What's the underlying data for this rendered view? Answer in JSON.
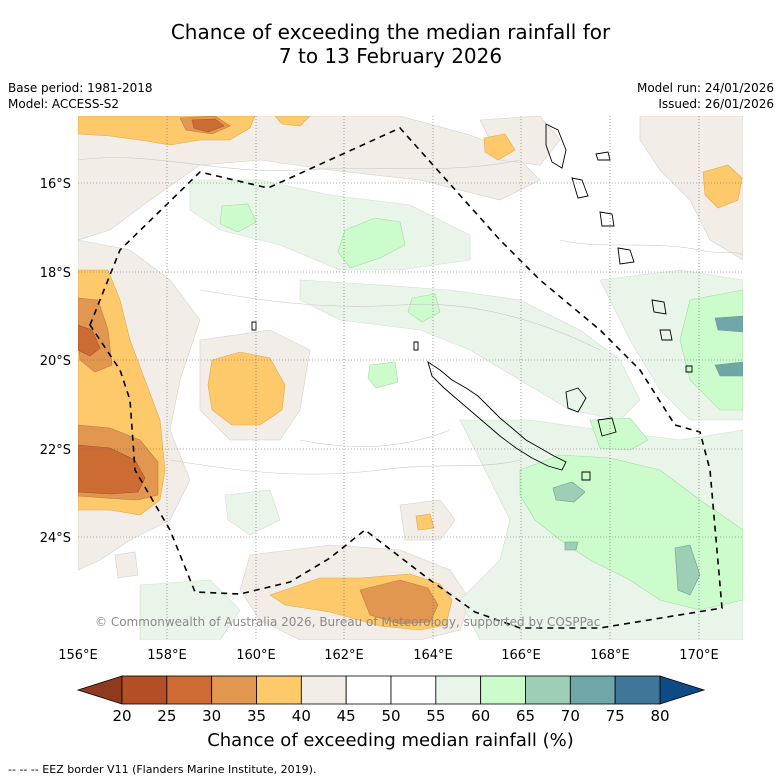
{
  "title": {
    "line1": "Chance of exceeding the median rainfall for",
    "line2": "7 to 13 February 2026"
  },
  "meta": {
    "base_period": "Base period: 1981-2018",
    "model": "Model: ACCESS-S2",
    "model_run": "Model run: 24/01/2026",
    "issued": "Issued: 26/01/2026"
  },
  "map": {
    "lon_range": [
      156,
      171
    ],
    "lat_range": [
      -26.3,
      -14.8
    ],
    "lon_ticks": [
      {
        "value": 156,
        "label": "156°E"
      },
      {
        "value": 158,
        "label": "158°E"
      },
      {
        "value": 160,
        "label": "160°E"
      },
      {
        "value": 162,
        "label": "162°E"
      },
      {
        "value": 164,
        "label": "164°E"
      },
      {
        "value": 166,
        "label": "166°E"
      },
      {
        "value": 168,
        "label": "168°E"
      },
      {
        "value": 170,
        "label": "170°E"
      }
    ],
    "lat_ticks": [
      {
        "value": -16,
        "label": "16°S"
      },
      {
        "value": -18,
        "label": "18°S"
      },
      {
        "value": -20,
        "label": "20°S"
      },
      {
        "value": -22,
        "label": "22°S"
      },
      {
        "value": -24,
        "label": "24°S"
      }
    ],
    "copyright": "© Commonwealth of Australia 2026, Bureau of Meteorology, supported by COSPPac"
  },
  "colorbar": {
    "ticks": [
      "20",
      "25",
      "30",
      "35",
      "40",
      "45",
      "50",
      "55",
      "60",
      "65",
      "70",
      "75",
      "80"
    ],
    "colors": [
      "#b34e26",
      "#cd6b34",
      "#e19750",
      "#fec96a",
      "#f3ede8",
      "#ffffff",
      "#ffffff",
      "#eaf5ea",
      "#ccfccc",
      "#9ccfb6",
      "#6fa7a8",
      "#3d7698"
    ],
    "low_extend_color": "#8f3a1f",
    "high_extend_color": "#0d4a86",
    "title": "Chance of exceeding median rainfall (%)"
  },
  "eez_legend": "--  --  -- EEZ border V11 (Flanders Marine Institute, 2019)."
}
